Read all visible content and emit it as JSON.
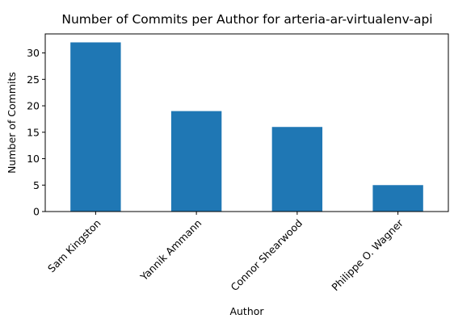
{
  "chart_data": {
    "type": "bar",
    "title": "Number of Commits per Author for arteria-ar-virtualenv-api",
    "xlabel": "Author",
    "ylabel": "Number of Commits",
    "categories": [
      "Sam Kingston",
      "Yannik Ammann",
      "Connor Shearwood",
      "Philippe O. Wagner"
    ],
    "values": [
      32,
      19,
      16,
      5
    ],
    "ylim": [
      0,
      33.6
    ],
    "yticks": [
      0,
      5,
      10,
      15,
      20,
      25,
      30
    ],
    "bar_color": "#1f77b4",
    "grid": false,
    "legend": "none"
  }
}
